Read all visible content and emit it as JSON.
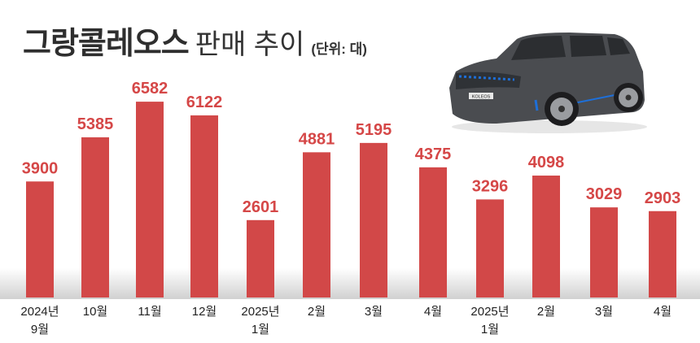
{
  "title": {
    "bold": "그랑콜레오스",
    "light": "판매 추이",
    "unit": "(단위: 대)"
  },
  "car": {
    "plate": "KOLEOS",
    "body_color": "#4a4c50",
    "accent_color": "#1e6fd8"
  },
  "chart_data": {
    "type": "bar",
    "title": "그랑콜레오스 판매 추이",
    "unit": "(단위: 대)",
    "categories": [
      [
        "2024년",
        "9월"
      ],
      [
        "10월"
      ],
      [
        "11월"
      ],
      [
        "12월"
      ],
      [
        "2025년",
        "1월"
      ],
      [
        "2월"
      ],
      [
        "3월"
      ],
      [
        "4월"
      ],
      [
        "2025년",
        "1월"
      ],
      [
        "2월"
      ],
      [
        "3월"
      ],
      [
        "4월"
      ]
    ],
    "values": [
      3900,
      5385,
      6582,
      6122,
      2601,
      4881,
      5195,
      4375,
      3296,
      4098,
      3029,
      2903
    ],
    "ylim": [
      0,
      10000
    ],
    "grid": false,
    "bar_color": "#d24848",
    "label_color": "#d54747"
  }
}
